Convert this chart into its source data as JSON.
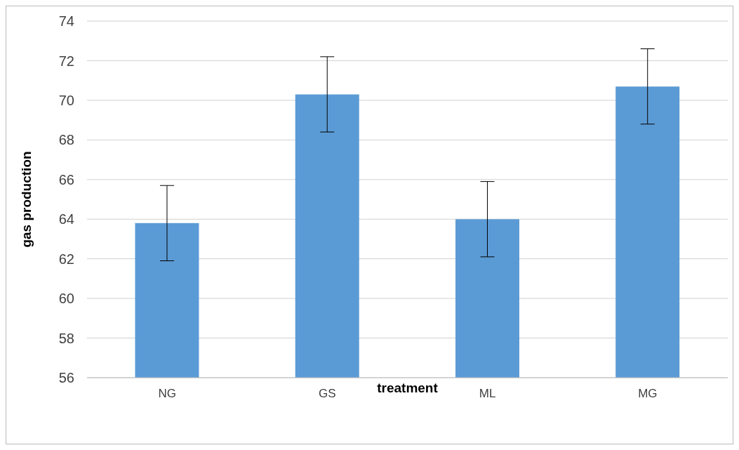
{
  "chart_data": {
    "type": "bar",
    "xlabel": "treatment",
    "ylabel": "gas  production",
    "categories": [
      "NG",
      "GS",
      "ML",
      "MG"
    ],
    "values": [
      63.8,
      70.3,
      64.0,
      70.7
    ],
    "errors": [
      1.9,
      1.9,
      1.9,
      1.9
    ],
    "color": "#5b9bd5",
    "ylim": [
      56,
      74
    ],
    "yticks": [
      56,
      58,
      60,
      62,
      64,
      66,
      68,
      70,
      72,
      74
    ],
    "grid": "y"
  }
}
